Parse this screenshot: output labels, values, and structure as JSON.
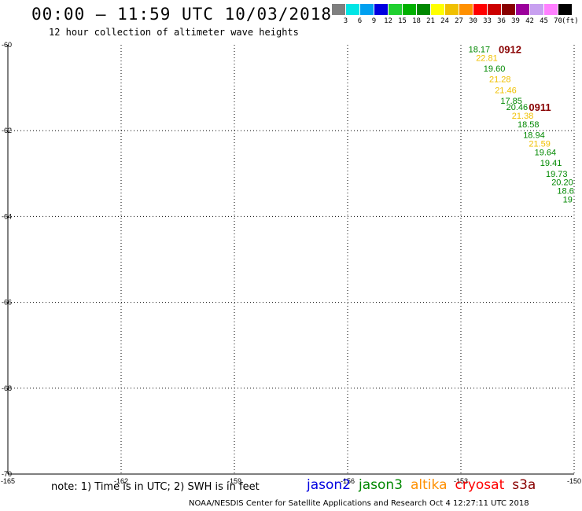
{
  "header": {
    "title": "00:00 – 11:59 UTC 10/03/2018",
    "subtitle": "12 hour collection of altimeter wave heights"
  },
  "colorbar": {
    "colors": [
      "#7f7f7f",
      "#00e5e5",
      "#00a0f0",
      "#0000e0",
      "#20d030",
      "#00b000",
      "#008800",
      "#ffff00",
      "#f0c000",
      "#ff9000",
      "#ff0000",
      "#cc0000",
      "#880000",
      "#9b009b",
      "#c8a0f0",
      "#ff80ff",
      "#000000"
    ],
    "labels": [
      "3",
      "6",
      "9",
      "12",
      "15",
      "18",
      "21",
      "24",
      "27",
      "30",
      "33",
      "36",
      "39",
      "42",
      "45",
      "70"
    ],
    "unit": "(ft)"
  },
  "chart_data": {
    "type": "scatter",
    "title": "00:00 – 11:59 UTC 10/03/2018",
    "subtitle": "12 hour collection of altimeter wave heights",
    "xlim": [
      -165,
      -150
    ],
    "ylim": [
      -70,
      -60
    ],
    "x_ticks": [
      "-165",
      "-162",
      "-159",
      "-156",
      "-153",
      "-150"
    ],
    "y_ticks": [
      "-60",
      "-62",
      "-64",
      "-66",
      "-68",
      "-70"
    ],
    "x_tick_values": [
      -165,
      -162,
      -159,
      -156,
      -153,
      -150
    ],
    "y_tick_values": [
      -60,
      -62,
      -64,
      -66,
      -68,
      -70
    ],
    "grid": true,
    "points": [
      {
        "lon": -152.8,
        "lat": -60.1,
        "value": "18.17",
        "color": "#008800"
      },
      {
        "lon": -152.6,
        "lat": -60.3,
        "value": "22.81",
        "color": "#f0c000"
      },
      {
        "lon": -152.4,
        "lat": -60.55,
        "value": "19.60",
        "color": "#008800"
      },
      {
        "lon": -152.25,
        "lat": -60.8,
        "value": "21.28",
        "color": "#f0c000"
      },
      {
        "lon": -152.1,
        "lat": -61.05,
        "value": "21.46",
        "color": "#f0c000"
      },
      {
        "lon": -151.95,
        "lat": -61.3,
        "value": "17.85",
        "color": "#008800"
      },
      {
        "lon": -151.8,
        "lat": -61.45,
        "value": "20.46",
        "color": "#008800"
      },
      {
        "lon": -151.65,
        "lat": -61.65,
        "value": "21.38",
        "color": "#f0c000"
      },
      {
        "lon": -151.5,
        "lat": -61.85,
        "value": "18.58",
        "color": "#008800"
      },
      {
        "lon": -151.35,
        "lat": -62.1,
        "value": "18.94",
        "color": "#008800"
      },
      {
        "lon": -151.2,
        "lat": -62.3,
        "value": "21.59",
        "color": "#f0c000"
      },
      {
        "lon": -151.05,
        "lat": -62.5,
        "value": "19.64",
        "color": "#008800"
      },
      {
        "lon": -150.9,
        "lat": -62.75,
        "value": "19.41",
        "color": "#008800"
      },
      {
        "lon": -150.75,
        "lat": -63.0,
        "value": "19.73",
        "color": "#008800"
      },
      {
        "lon": -150.6,
        "lat": -63.2,
        "value": "20.20",
        "color": "#008800"
      },
      {
        "lon": -150.45,
        "lat": -63.4,
        "value": "18.6",
        "color": "#008800"
      },
      {
        "lon": -150.3,
        "lat": -63.6,
        "value": "19",
        "color": "#008800"
      }
    ],
    "annotations": [
      {
        "lon": -152.0,
        "lat": -60.1,
        "text": "0912",
        "color": "#880000"
      },
      {
        "lon": -151.2,
        "lat": -61.45,
        "text": "0911",
        "color": "#880000"
      }
    ]
  },
  "footer": {
    "note": "note: 1) Time is in UTC; 2) SWH is in feet",
    "missions": [
      {
        "name": "jason2",
        "color": "#0000e0"
      },
      {
        "name": "jason3",
        "color": "#008800"
      },
      {
        "name": "altika",
        "color": "#ff9000"
      },
      {
        "name": "cryosat",
        "color": "#ff0000"
      },
      {
        "name": "s3a",
        "color": "#880000"
      }
    ],
    "credit": "NOAA/NESDIS Center for Satellite Applications and Research   Oct  4 12:27:11 UTC 2018"
  }
}
